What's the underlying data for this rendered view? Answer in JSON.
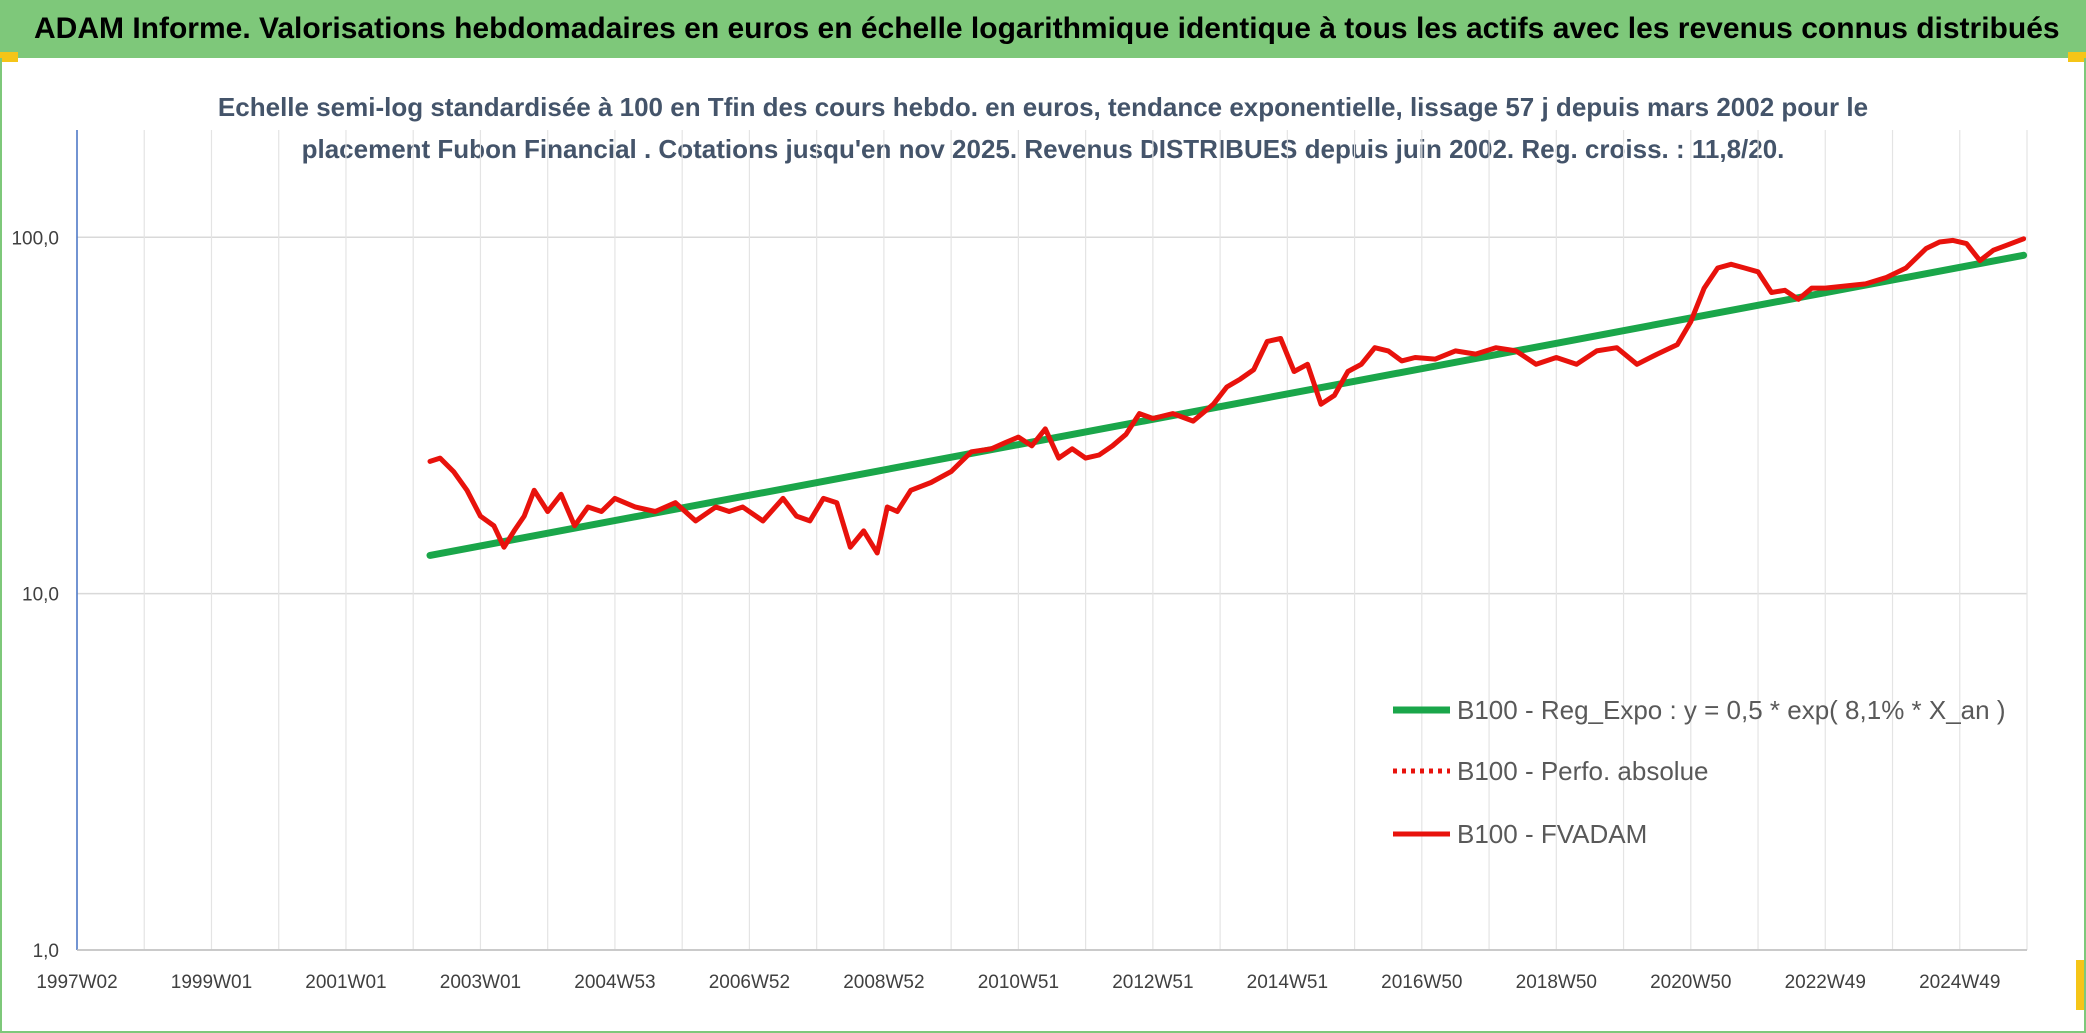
{
  "header": {
    "title": "ADAM Informe. Valorisations hebdomadaires en euros en échelle logarithmique identique à tous les actifs avec les revenus connus distribués"
  },
  "colors": {
    "header_bg": "#7ec87a",
    "trend": "#1aa64a",
    "series": "#e8120c",
    "grid": "#d9d9d9"
  },
  "chart_data": {
    "type": "line",
    "title_lines": [
      "Echelle semi-log standardisée à 100 en Tfin des cours hebdo. en euros, tendance exponentielle, lissage 57 j depuis mars 2002 pour le",
      "placement Fubon Financial . Cotations jusqu'en nov 2025. Revenus DISTRIBUES depuis juin 2002. Reg. croiss. : 11,8/20."
    ],
    "y_scale": "log",
    "ylim": [
      1,
      200
    ],
    "y_ticks": [
      {
        "value": 1,
        "label": "1,0"
      },
      {
        "value": 10,
        "label": "10,0"
      },
      {
        "value": 100,
        "label": "100,0"
      }
    ],
    "xlim": [
      1997.0,
      2026.0
    ],
    "x_ticks": [
      {
        "value": 1997.0,
        "label": "1997W02"
      },
      {
        "value": 1999.0,
        "label": "1999W01"
      },
      {
        "value": 2001.0,
        "label": "2001W01"
      },
      {
        "value": 2003.0,
        "label": "2003W01"
      },
      {
        "value": 2005.0,
        "label": "2004W53"
      },
      {
        "value": 2007.0,
        "label": "2006W52"
      },
      {
        "value": 2009.0,
        "label": "2008W52"
      },
      {
        "value": 2011.0,
        "label": "2010W51"
      },
      {
        "value": 2013.0,
        "label": "2012W51"
      },
      {
        "value": 2015.0,
        "label": "2014W51"
      },
      {
        "value": 2017.0,
        "label": "2016W50"
      },
      {
        "value": 2019.0,
        "label": "2018W50"
      },
      {
        "value": 2021.0,
        "label": "2020W50"
      },
      {
        "value": 2023.0,
        "label": "2022W49"
      },
      {
        "value": 2025.0,
        "label": "2024W49"
      }
    ],
    "legend_position": "bottom-right",
    "series": [
      {
        "name": "B100 - Reg_Expo : y = 0,5 * exp( 8,1% *  X_an )",
        "style": "trend",
        "x": [
          2002.25,
          2025.95
        ],
        "y": [
          12.8,
          89.0
        ]
      },
      {
        "name": "B100 - Perfo. absolue",
        "style": "dotted",
        "x": [],
        "y": []
      },
      {
        "name": "B100 - FVADAM",
        "style": "solid",
        "x": [
          2002.25,
          2002.4,
          2002.6,
          2002.8,
          2003.0,
          2003.2,
          2003.35,
          2003.5,
          2003.65,
          2003.8,
          2004.0,
          2004.2,
          2004.4,
          2004.6,
          2004.8,
          2005.0,
          2005.3,
          2005.6,
          2005.9,
          2006.2,
          2006.5,
          2006.7,
          2006.9,
          2007.2,
          2007.5,
          2007.7,
          2007.9,
          2008.1,
          2008.3,
          2008.5,
          2008.7,
          2008.9,
          2009.05,
          2009.2,
          2009.4,
          2009.7,
          2010.0,
          2010.3,
          2010.6,
          2010.8,
          2011.0,
          2011.2,
          2011.4,
          2011.6,
          2011.8,
          2012.0,
          2012.2,
          2012.4,
          2012.6,
          2012.8,
          2013.0,
          2013.3,
          2013.6,
          2013.9,
          2014.1,
          2014.3,
          2014.5,
          2014.7,
          2014.9,
          2015.1,
          2015.3,
          2015.5,
          2015.7,
          2015.9,
          2016.1,
          2016.3,
          2016.5,
          2016.7,
          2016.9,
          2017.2,
          2017.5,
          2017.8,
          2018.1,
          2018.4,
          2018.7,
          2019.0,
          2019.3,
          2019.6,
          2019.9,
          2020.2,
          2020.5,
          2020.8,
          2021.0,
          2021.2,
          2021.4,
          2021.6,
          2021.8,
          2022.0,
          2022.2,
          2022.4,
          2022.6,
          2022.8,
          2023.0,
          2023.3,
          2023.6,
          2023.9,
          2024.2,
          2024.5,
          2024.7,
          2024.9,
          2025.1,
          2025.3,
          2025.5,
          2025.7,
          2025.95
        ],
        "y": [
          23.5,
          24.0,
          22.0,
          19.5,
          16.5,
          15.5,
          13.5,
          15.0,
          16.5,
          19.5,
          17.0,
          19.0,
          15.5,
          17.5,
          17.0,
          18.5,
          17.5,
          17.0,
          18.0,
          16.0,
          17.5,
          17.0,
          17.5,
          16.0,
          18.5,
          16.5,
          16.0,
          18.5,
          18.0,
          13.5,
          15.0,
          13.0,
          17.5,
          17.0,
          19.5,
          20.5,
          22.0,
          25.0,
          25.5,
          26.5,
          27.5,
          26.0,
          29.0,
          24.0,
          25.5,
          24.0,
          24.5,
          26.0,
          28.0,
          32.0,
          31.0,
          32.0,
          30.5,
          34.0,
          38.0,
          40.0,
          42.5,
          51.0,
          52.0,
          42.0,
          44.0,
          34.0,
          36.0,
          42.0,
          44.0,
          49.0,
          48.0,
          45.0,
          46.0,
          45.5,
          48.0,
          47.0,
          49.0,
          48.0,
          44.0,
          46.0,
          44.0,
          48.0,
          49.0,
          44.0,
          47.0,
          50.0,
          58.0,
          72.0,
          82.0,
          84.0,
          82.0,
          80.0,
          70.0,
          71.0,
          67.0,
          72.0,
          72.0,
          73.0,
          74.0,
          77.0,
          82.0,
          93.0,
          97.0,
          98.0,
          96.0,
          86.0,
          92.0,
          95.0,
          99.0
        ]
      }
    ]
  }
}
